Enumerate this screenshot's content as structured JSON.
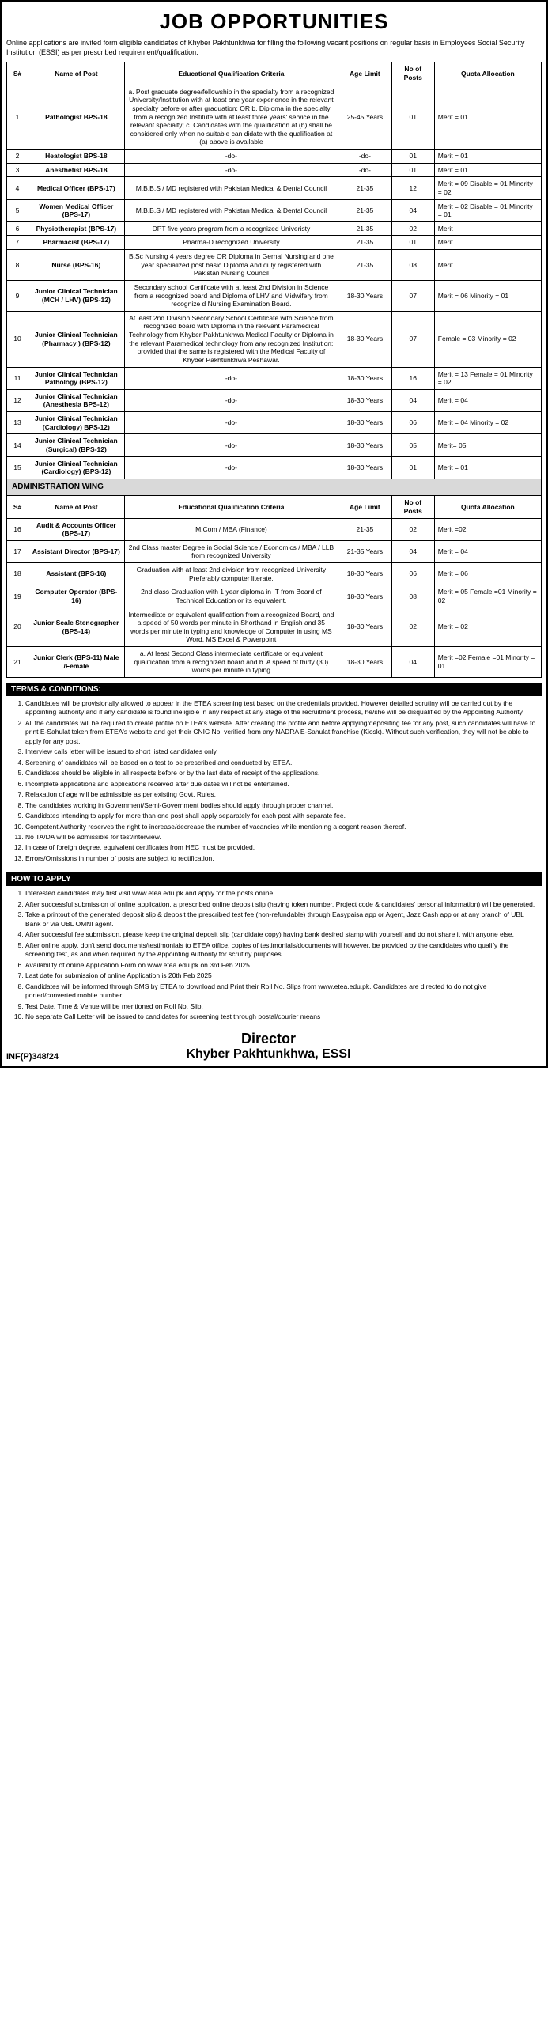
{
  "title": "JOB OPPORTUNITIES",
  "intro": "Online applications are invited form eligible candidates of Khyber Pakhtunkhwa for filling the following vacant positions on regular basis in Employees Social Security Institution (ESSI) as per prescribed requirement/qualification.",
  "headers": {
    "sn": "S#",
    "name": "Name of Post",
    "crit": "Educational Qualification Criteria",
    "age": "Age Limit",
    "num": "No of Posts",
    "quota": "Quota Allocation"
  },
  "rows1": [
    {
      "sn": "1",
      "name": "Pathologist BPS-18",
      "crit": "a. Post graduate degree/fellowship in the specialty from a recognized University/Institution with at least one year experience in the relevant specialty before or after graduation: OR b. Diploma in the specialty from a recognized Institute with at least three years' service in the relevant specialty; c. Candidates with the qualification at (b) shall be considered only when no suitable can didate with the qualification at (a) above is available",
      "age": "25-45 Years",
      "num": "01",
      "quota": "Merit = 01"
    },
    {
      "sn": "2",
      "name": "Heatologist BPS-18",
      "crit": "-do-",
      "age": "-do-",
      "num": "01",
      "quota": "Merit = 01"
    },
    {
      "sn": "3",
      "name": "Anesthetist BPS-18",
      "crit": "-do-",
      "age": "-do-",
      "num": "01",
      "quota": "Merit = 01"
    },
    {
      "sn": "4",
      "name": "Medical Officer (BPS-17)",
      "crit": "M.B.B.S / MD registered with Pakistan Medical & Dental Council",
      "age": "21-35",
      "num": "12",
      "quota": "Merit = 09 Disable = 01 Minority = 02"
    },
    {
      "sn": "5",
      "name": "Women Medical Officer (BPS-17)",
      "crit": "M.B.B.S / MD registered with Pakistan Medical & Dental Council",
      "age": "21-35",
      "num": "04",
      "quota": "Merit = 02 Disable = 01 Minority = 01"
    },
    {
      "sn": "6",
      "name": "Physiotherapist (BPS-17)",
      "crit": "DPT five years program from a recognized Univeristy",
      "age": "21-35",
      "num": "02",
      "quota": "Merit"
    },
    {
      "sn": "7",
      "name": "Pharmacist (BPS-17)",
      "crit": "Pharma-D recognized University",
      "age": "21-35",
      "num": "01",
      "quota": "Merit"
    },
    {
      "sn": "8",
      "name": "Nurse (BPS-16)",
      "crit": "B.Sc Nursing 4 years degree OR Diploma in Gernal Nursing and one year specialized post basic Diploma And duly registered with Pakistan Nursing Council",
      "age": "21-35",
      "num": "08",
      "quota": "Merit"
    },
    {
      "sn": "9",
      "name": "Junior Clinical Technician (MCH / LHV) (BPS-12)",
      "crit": "Secondary school Certificate with at least 2nd Division in Science from a recognized board and Diploma of LHV and Midwifery from recognize d Nursing Examination Board.",
      "age": "18-30 Years",
      "num": "07",
      "quota": "Merit = 06 Minority = 01"
    },
    {
      "sn": "10",
      "name": "Junior Clinical Technician (Pharmacy ) (BPS-12)",
      "crit": "At least 2nd Division Secondary School Certificate with Science from recognized board with Diploma in the relevant Paramedical Technology from Khyber Pakhtunkhwa Medical Faculty or Diploma in the relevant Paramedical technology from any recognized Institution: provided that the same is registered with the Medical Faculty of Khyber Pakhtunkhwa Peshawar.",
      "age": "18-30 Years",
      "num": "07",
      "quota": "Female = 03 Minority = 02"
    },
    {
      "sn": "11",
      "name": "Junior Clinical Technician Pathology (BPS-12)",
      "crit": "-do-",
      "age": "18-30 Years",
      "num": "16",
      "quota": "Merit = 13 Female = 01 Minority = 02"
    },
    {
      "sn": "12",
      "name": "Junior Clinical Technician (Anesthesia BPS-12)",
      "crit": "-do-",
      "age": "18-30 Years",
      "num": "04",
      "quota": "Merit = 04"
    },
    {
      "sn": "13",
      "name": "Junior Clinical Technician (Cardiology) BPS-12)",
      "crit": "-do-",
      "age": "18-30 Years",
      "num": "06",
      "quota": "Merit = 04 Minority = 02"
    },
    {
      "sn": "14",
      "name": "Junior Clinical Technician (Surgical) (BPS-12)",
      "crit": "-do-",
      "age": "18-30 Years",
      "num": "05",
      "quota": "Merit= 05"
    },
    {
      "sn": "15",
      "name": "Junior Clinical Technician (Cardiology) (BPS-12)",
      "crit": "-do-",
      "age": "18-30 Years",
      "num": "01",
      "quota": "Merit = 01"
    }
  ],
  "admin_header": "ADMINISTRATION WING",
  "rows2": [
    {
      "sn": "16",
      "name": "Audit & Accounts Officer (BPS-17)",
      "crit": "M.Com / MBA (Finance)",
      "age": "21-35",
      "num": "02",
      "quota": "Merit =02"
    },
    {
      "sn": "17",
      "name": "Assistant Director (BPS-17)",
      "crit": "2nd Class master Degree in Social Science / Economics / MBA / LLB from recognized University",
      "age": "21-35 Years",
      "num": "04",
      "quota": "Merit = 04"
    },
    {
      "sn": "18",
      "name": "Assistant (BPS-16)",
      "crit": "Graduation with at least 2nd division from recognized University Preferably computer literate.",
      "age": "18-30 Years",
      "num": "06",
      "quota": "Merit = 06"
    },
    {
      "sn": "19",
      "name": "Computer Operator (BPS-16)",
      "crit": "2nd class Graduation with 1 year diploma in IT from Board of Technical Education or its equivalent.",
      "age": "18-30 Years",
      "num": "08",
      "quota": "Merit = 05 Female =01 Minority = 02"
    },
    {
      "sn": "20",
      "name": "Junior Scale Stenographer (BPS-14)",
      "crit": "Intermediate or equivalent qualification from a recognized Board, and a speed of 50 words per minute in Shorthand in English and 35 words per minute in typing and knowledge of Computer in using MS Word, MS Excel & Powerpoint",
      "age": "18-30 Years",
      "num": "02",
      "quota": "Merit = 02"
    },
    {
      "sn": "21",
      "name": "Junior Clerk (BPS-11) Male /Female",
      "crit": "a. At least Second Class intermediate certificate or equivalent qualification from a recognized board and b. A speed of thirty (30) words per minute in typing",
      "age": "18-30 Years",
      "num": "04",
      "quota": "Merit =02 Female =01 Minority = 01"
    }
  ],
  "terms_header": "TERMS & CONDITIONS:",
  "terms": [
    "Candidates will be provisionally allowed to appear in the ETEA screening test based on the credentials provided. However detailed scrutiny will be carried out by the appointing authority and if any candidate is found ineligible in any respect at any stage of the recruitment process, he/she will be disqualified by the Appointing Authority.",
    "All the candidates will be required to create profile on ETEA's website. After creating the profile and before applying/depositing fee for any post, such candidates will have to print E-Sahulat token from ETEA's website and get their CNIC No. verified from any NADRA E-Sahulat franchise (Kiosk). Without such verification, they will not be able to apply for any post.",
    "Interview calls letter will be issued to short listed candidates only.",
    "Screening of candidates will be based on a test to be prescribed and conducted by ETEA.",
    "Candidates should be eligible in all respects before or by the last date of receipt of the applications.",
    "Incomplete applications and applications received after due dates will not be entertained.",
    "Relaxation of age will be admissible as per existing Govt. Rules.",
    "The candidates working in Government/Semi-Government bodies should apply through proper channel.",
    "Candidates intending to apply for more than one post shall apply separately for each post with separate fee.",
    "Competent Authority reserves the right to increase/decrease the number of vacancies while mentioning a cogent reason thereof.",
    "No TA/DA will be admissible for test/interview.",
    "In case of foreign degree, equivalent certificates from HEC must be provided.",
    "Errors/Omissions in number of posts are subject to rectification."
  ],
  "apply_header": "HOW TO APPLY",
  "apply": [
    "Interested candidates may first visit www.etea.edu.pk and apply for the posts online.",
    "After successful submission of online application, a prescribed online deposit slip (having token number, Project code & candidates' personal information) will be generated.",
    "Take a printout of the generated deposit slip & deposit the prescribed test fee (non-refundable) through Easypaisa app or Agent, Jazz Cash app or at any branch of UBL Bank or via UBL OMNI agent.",
    "After successful fee submission, please keep the original deposit slip (candidate copy) having bank desired stamp with yourself and do not share it with anyone else.",
    "After online apply, don't send documents/testimonials to ETEA office, copies of testimonials/documents will however, be provided by the candidates who qualify the screening test, as and when required by the Appointing Authority for scrutiny purposes.",
    "Availability of online Application Form on www.etea.edu.pk on 3rd Feb 2025",
    "Last date for submission of online Application is 20th Feb 2025",
    "Candidates will be informed through SMS by ETEA to download and Print their Roll No. Slips from www.etea.edu.pk. Candidates are directed to do not give ported/converted mobile number.",
    "Test Date. Time & Venue will be mentioned on Roll No. Slip.",
    "No separate Call Letter will be issued to candidates for screening test through postal/courier means"
  ],
  "inf": "INF(P)348/24",
  "director1": "Director",
  "director2": "Khyber Pakhtunkhwa, ESSI"
}
